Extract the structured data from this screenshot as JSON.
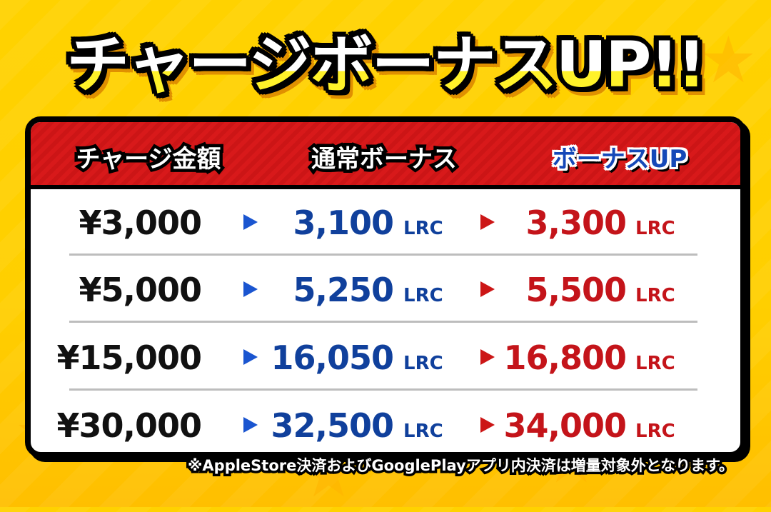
{
  "title": "チャージボーナスUP!!",
  "table": {
    "headers": [
      "チャージ金額",
      "通常ボーナス",
      "ボーナスUP"
    ],
    "unit": "LRC",
    "rows": [
      {
        "amount": "¥3,000",
        "normal": "3,100",
        "up": "3,300"
      },
      {
        "amount": "¥5,000",
        "normal": "5,250",
        "up": "5,500"
      },
      {
        "amount": "¥15,000",
        "normal": "16,050",
        "up": "16,800"
      },
      {
        "amount": "¥30,000",
        "normal": "32,500",
        "up": "34,000"
      }
    ]
  },
  "note": "※AppleStore決済およびGooglePlayアプリ内決済は増量対象外となります。",
  "colors": {
    "background": "#ffd200",
    "header": "#d8191a",
    "normal_bonus": "#10409c",
    "bonus_up": "#c4141a"
  },
  "icons": [
    "arrow-right-blue-icon",
    "arrow-right-red-icon",
    "star-decoration-icon"
  ]
}
